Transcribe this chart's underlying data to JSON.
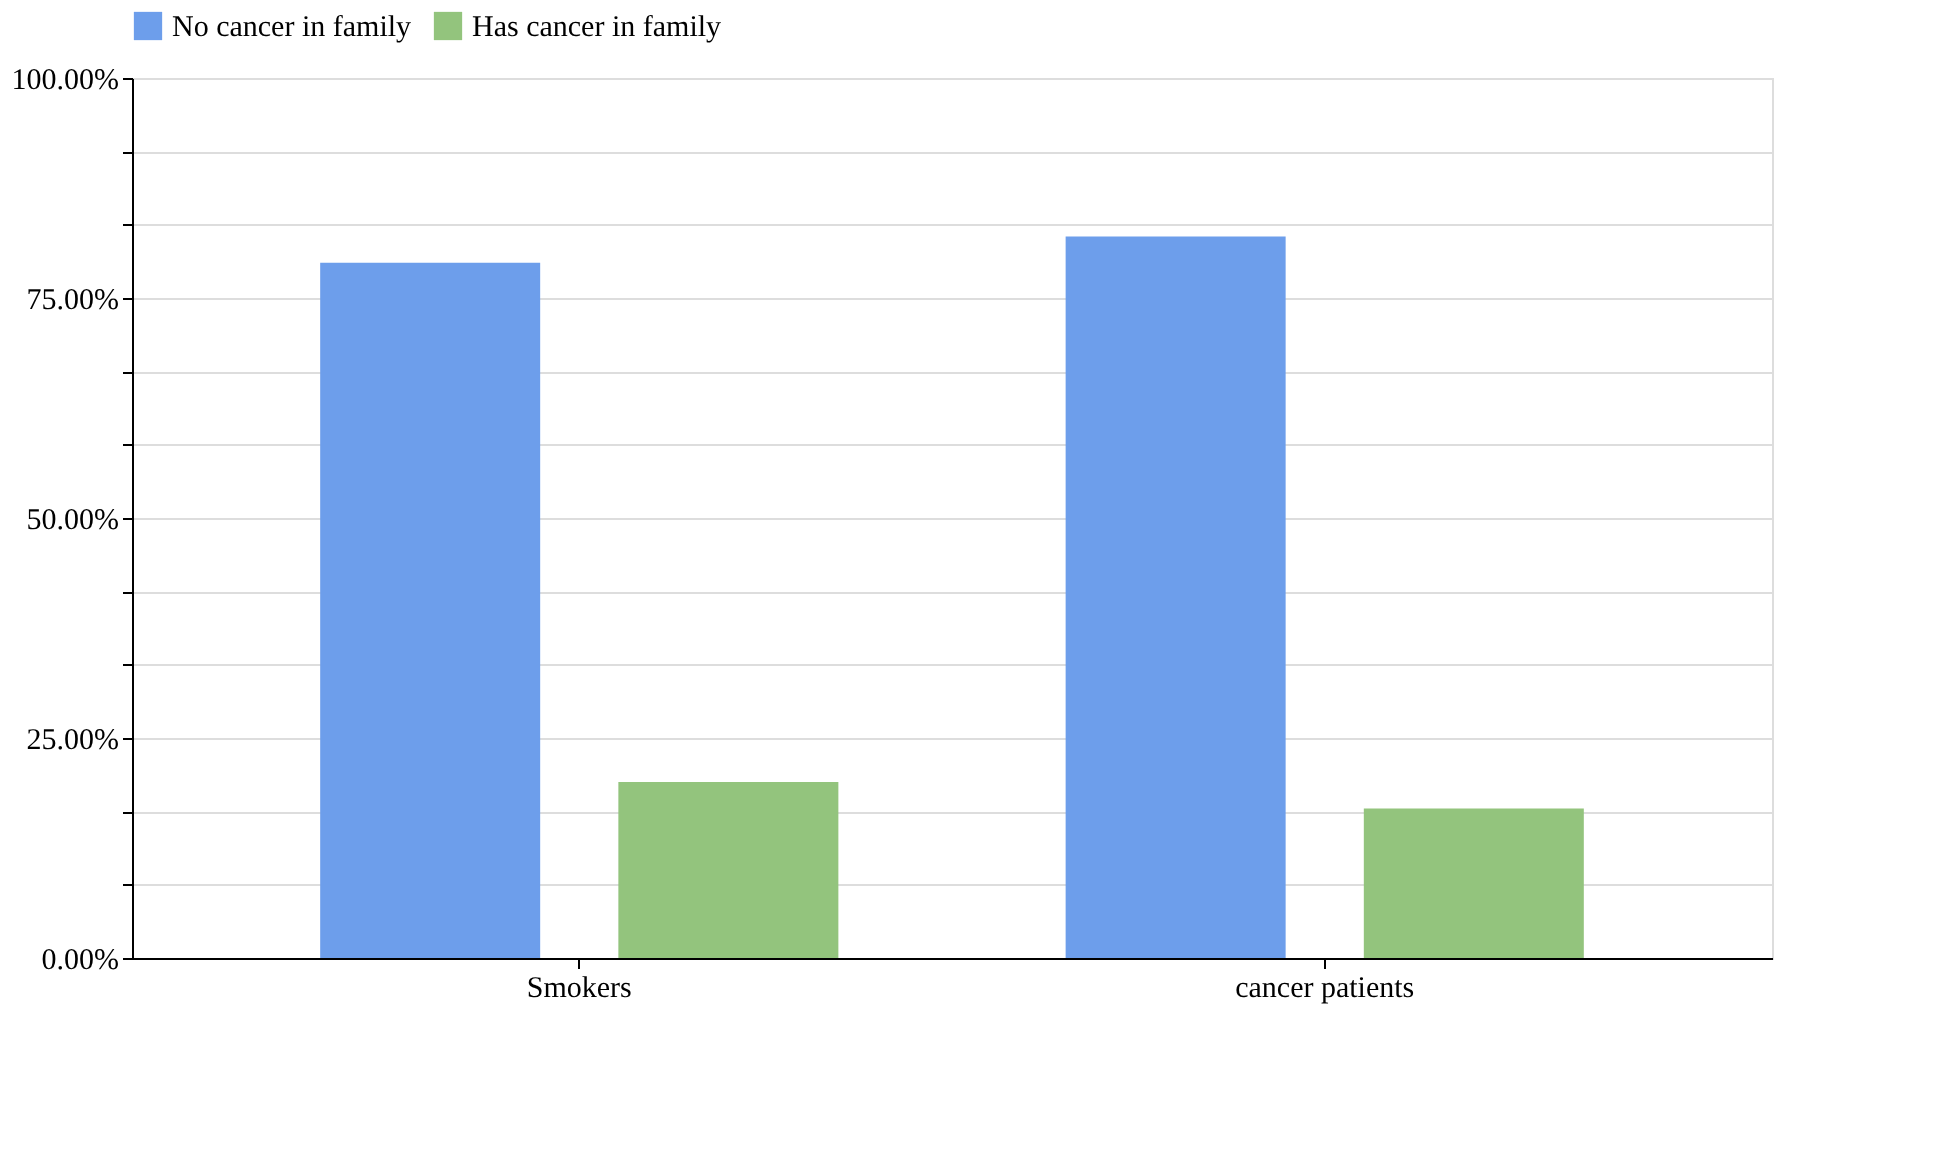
{
  "chart_data": {
    "type": "bar",
    "categories": [
      "Smokers",
      "cancer patients"
    ],
    "series": [
      {
        "name": "No cancer in family",
        "color": "#6d9eeb",
        "values": [
          79,
          82
        ]
      },
      {
        "name": "Has cancer in family",
        "color": "#93c47d",
        "values": [
          20,
          17
        ]
      }
    ],
    "ylim": [
      0,
      100
    ],
    "yticks": [
      {
        "value": 0,
        "label": "0.00%"
      },
      {
        "value": 8.33,
        "label": null
      },
      {
        "value": 16.67,
        "label": null
      },
      {
        "value": 25,
        "label": "25.00%"
      },
      {
        "value": 33.33,
        "label": null
      },
      {
        "value": 41.67,
        "label": null
      },
      {
        "value": 50,
        "label": "50.00%"
      },
      {
        "value": 58.33,
        "label": null
      },
      {
        "value": 66.67,
        "label": null
      },
      {
        "value": 75,
        "label": "75.00%"
      },
      {
        "value": 83.33,
        "label": null
      },
      {
        "value": 91.67,
        "label": null
      },
      {
        "value": 100,
        "label": "100.00%"
      }
    ],
    "grid": "y",
    "legend": "top"
  }
}
